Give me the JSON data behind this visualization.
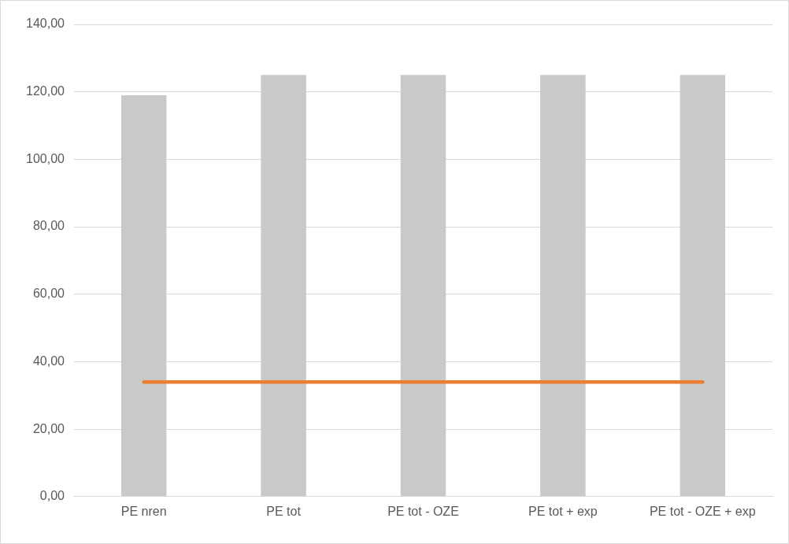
{
  "chart_data": {
    "type": "bar",
    "categories": [
      "PE nren",
      "PE tot",
      "PE tot - OZE",
      "PE tot + exp",
      "PE tot - OZE + exp"
    ],
    "series": [
      {
        "color": "#c9c9c9",
        "values": [
          119,
          125,
          125,
          125,
          125
        ]
      },
      {
        "type": "line",
        "color": "#ed7d31",
        "values": [
          34,
          34,
          34,
          34,
          34
        ]
      }
    ],
    "ylim": [
      0,
      140
    ],
    "yticks": [
      {
        "value": 0,
        "label": "0,00"
      },
      {
        "value": 20,
        "label": "20,00"
      },
      {
        "value": 40,
        "label": "40,00"
      },
      {
        "value": 60,
        "label": "60,00"
      },
      {
        "value": 80,
        "label": "80,00"
      },
      {
        "value": 100,
        "label": "100,00"
      },
      {
        "value": 120,
        "label": "120,00"
      },
      {
        "value": 140,
        "label": "140,00"
      }
    ],
    "grid": "y",
    "legend": false,
    "marker": "none",
    "line_style": "solid"
  }
}
